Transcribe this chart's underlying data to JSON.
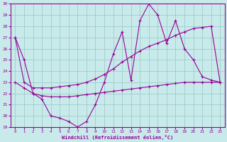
{
  "xlabel": "Windchill (Refroidissement éolien,°C)",
  "bg_color": "#c8eaea",
  "grid_color": "#a0cccc",
  "line_color": "#990099",
  "xlim": [
    -0.5,
    23.5
  ],
  "ylim": [
    19,
    30
  ],
  "yticks": [
    19,
    20,
    21,
    22,
    23,
    24,
    25,
    26,
    27,
    28,
    29,
    30
  ],
  "xticks": [
    0,
    1,
    2,
    3,
    4,
    5,
    6,
    7,
    8,
    9,
    10,
    11,
    12,
    13,
    14,
    15,
    16,
    17,
    18,
    19,
    20,
    21,
    22,
    23
  ],
  "series": [
    {
      "x": [
        0,
        1,
        2,
        3,
        4,
        5,
        6,
        7,
        8,
        9,
        10,
        11,
        12,
        13,
        14,
        15,
        16,
        17,
        18,
        19,
        20,
        21,
        22,
        23
      ],
      "y": [
        27,
        25,
        22,
        21.5,
        20,
        19.8,
        19.5,
        19,
        19.5,
        21,
        23,
        25.5,
        27.5,
        23.2,
        28.5,
        30,
        29,
        26.5,
        28.5,
        26,
        25,
        23.5,
        23.2,
        23
      ]
    },
    {
      "x": [
        0,
        1,
        2,
        3,
        4,
        5,
        6,
        7,
        8,
        9,
        10,
        11,
        12,
        13,
        14,
        15,
        16,
        17,
        18,
        19,
        20,
        21,
        22,
        23
      ],
      "y": [
        27,
        23,
        22.5,
        22.5,
        22.5,
        22.6,
        22.7,
        22.8,
        23.0,
        23.3,
        23.7,
        24.2,
        24.8,
        25.3,
        25.8,
        26.2,
        26.5,
        26.8,
        27.2,
        27.5,
        27.8,
        27.9,
        28.0,
        23
      ]
    },
    {
      "x": [
        0,
        1,
        2,
        3,
        4,
        5,
        6,
        7,
        8,
        9,
        10,
        11,
        12,
        13,
        14,
        15,
        16,
        17,
        18,
        19,
        20,
        21,
        22,
        23
      ],
      "y": [
        23,
        22.5,
        22.0,
        21.8,
        21.7,
        21.7,
        21.7,
        21.8,
        21.9,
        22.0,
        22.1,
        22.2,
        22.3,
        22.4,
        22.5,
        22.6,
        22.7,
        22.8,
        22.9,
        23.0,
        23.0,
        23.0,
        23.0,
        23.0
      ]
    }
  ]
}
